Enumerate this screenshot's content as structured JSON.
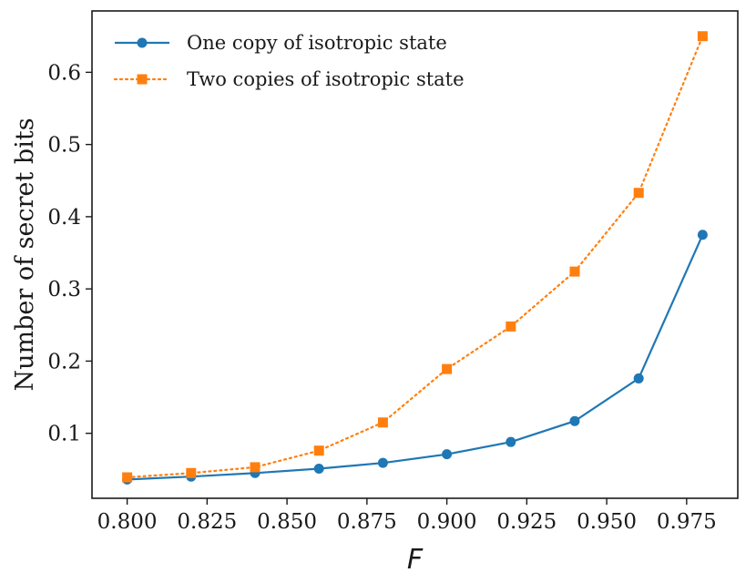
{
  "chart_data": {
    "type": "line",
    "title": "",
    "xlabel": "F",
    "ylabel": "Number of secret bits",
    "x": [
      0.8,
      0.82,
      0.84,
      0.86,
      0.88,
      0.9,
      0.92,
      0.94,
      0.96,
      0.98
    ],
    "xlim": [
      0.789,
      0.991
    ],
    "ylim": [
      0.01,
      0.685
    ],
    "x_ticks": [
      0.8,
      0.825,
      0.85,
      0.875,
      0.9,
      0.925,
      0.95,
      0.975
    ],
    "x_tick_labels": [
      "0.800",
      "0.825",
      "0.850",
      "0.875",
      "0.900",
      "0.925",
      "0.950",
      "0.975"
    ],
    "y_ticks": [
      0.1,
      0.2,
      0.3,
      0.4,
      0.5,
      0.6
    ],
    "y_tick_labels": [
      "0.1",
      "0.2",
      "0.3",
      "0.4",
      "0.5",
      "0.6"
    ],
    "grid": false,
    "legend_position": "top-left",
    "series": [
      {
        "name": "One copy of isotropic state",
        "values": [
          0.036,
          0.04,
          0.045,
          0.051,
          0.059,
          0.071,
          0.088,
          0.117,
          0.176,
          0.375
        ],
        "color": "#1f77b4",
        "marker": "circle",
        "linestyle": "solid"
      },
      {
        "name": "Two copies of isotropic state",
        "values": [
          0.039,
          0.045,
          0.053,
          0.076,
          0.115,
          0.189,
          0.248,
          0.324,
          0.433,
          0.65
        ],
        "color": "#ff7f0e",
        "marker": "square",
        "linestyle": "dotted"
      }
    ]
  }
}
